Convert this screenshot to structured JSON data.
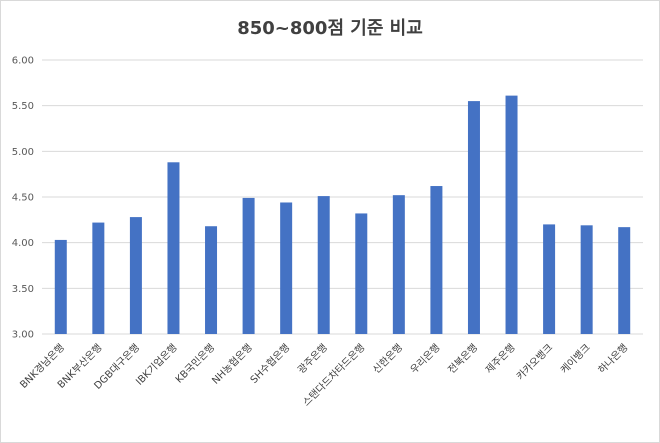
{
  "chart_data": {
    "type": "bar",
    "title": "850~800점 기준 비교",
    "xlabel": "",
    "ylabel": "",
    "ylim": [
      3.0,
      6.0
    ],
    "yticks": [
      "3.00",
      "3.50",
      "4.00",
      "4.50",
      "5.00",
      "5.50",
      "6.00"
    ],
    "grid": true,
    "legend": "none",
    "color": "#4472c4",
    "categories": [
      "BNK경남은행",
      "BNK부산은행",
      "DGB대구은행",
      "IBK기업은행",
      "KB국민은행",
      "NH농협은행",
      "SH수협은행",
      "광주은행",
      "스탠다드차타드은행",
      "신한은행",
      "우리은행",
      "전북은행",
      "제주은행",
      "카카오뱅크",
      "케이뱅크",
      "하나은행"
    ],
    "values": [
      4.03,
      4.22,
      4.28,
      4.88,
      4.18,
      4.49,
      4.44,
      4.51,
      4.32,
      4.52,
      4.62,
      5.55,
      5.61,
      4.2,
      4.19,
      4.17
    ]
  }
}
